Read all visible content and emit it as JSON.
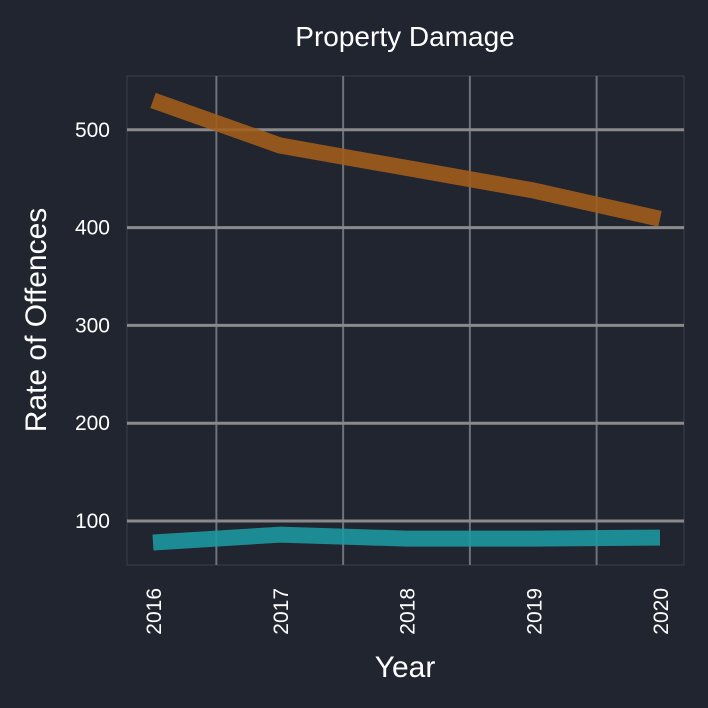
{
  "chart_data": {
    "type": "line",
    "title": "Property Damage",
    "xlabel": "Year",
    "ylabel": "Rate of Offences",
    "x": [
      "2016",
      "2017",
      "2018",
      "2019",
      "2020"
    ],
    "yticks": [
      100,
      200,
      300,
      400,
      500
    ],
    "ylim": [
      55,
      555
    ],
    "grid": true,
    "legend": "none",
    "series": [
      {
        "color": "#a35d1a",
        "values": [
          530,
          484,
          461,
          438,
          409
        ]
      },
      {
        "color": "#1b9aa0",
        "values": [
          78,
          86,
          82,
          82,
          83
        ]
      }
    ]
  }
}
